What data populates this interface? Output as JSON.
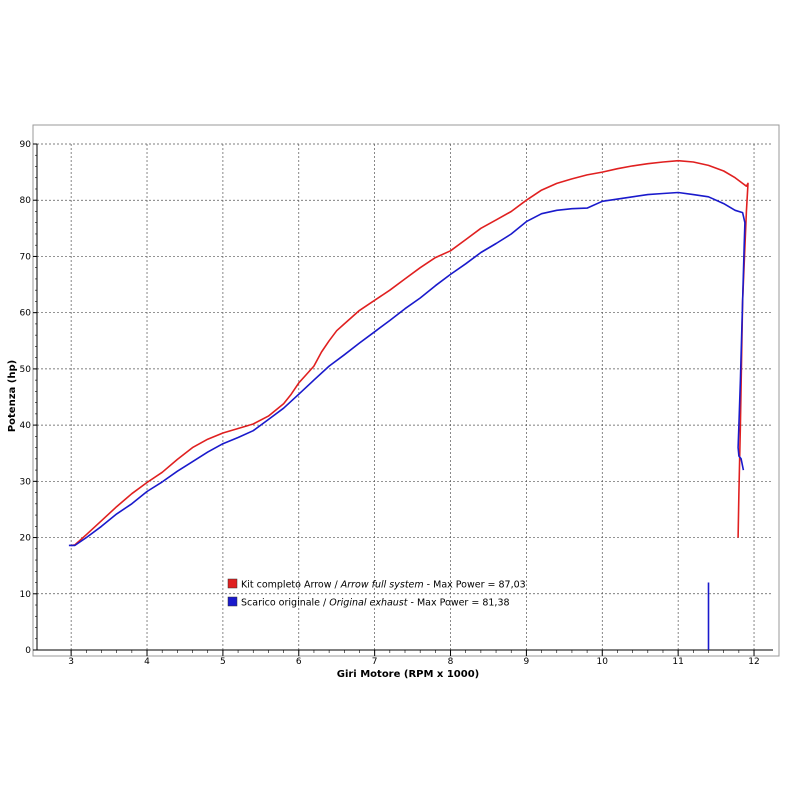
{
  "chart_data": {
    "type": "line",
    "xlabel": "Giri Motore (RPM x 1000)",
    "ylabel": "Potenza (hp)",
    "xlim": [
      2.55,
      12.25
    ],
    "ylim": [
      0,
      90
    ],
    "x_ticks": [
      3,
      4,
      5,
      6,
      7,
      8,
      9,
      10,
      11,
      12
    ],
    "y_ticks": [
      0,
      10,
      20,
      30,
      40,
      50,
      60,
      70,
      80,
      90
    ],
    "grid": true,
    "legend_position": "bottom-center",
    "series": [
      {
        "name": "Kit completo Arrow / Arrow full system - Max Power = 87,03",
        "legend_plain": "Kit completo Arrow / ",
        "legend_italic": "Arrow full system",
        "legend_suffix": " - Max Power = 87,03",
        "color": "#e02020",
        "x": [
          3.0,
          3.05,
          3.2,
          3.4,
          3.6,
          3.8,
          4.0,
          4.2,
          4.4,
          4.6,
          4.8,
          5.0,
          5.2,
          5.4,
          5.6,
          5.8,
          5.9,
          6.0,
          6.1,
          6.2,
          6.3,
          6.4,
          6.5,
          6.6,
          6.8,
          7.0,
          7.2,
          7.4,
          7.6,
          7.8,
          8.0,
          8.2,
          8.4,
          8.6,
          8.8,
          9.0,
          9.2,
          9.4,
          9.6,
          9.8,
          10.0,
          10.2,
          10.4,
          10.6,
          10.8,
          11.0,
          11.2,
          11.4,
          11.6,
          11.75,
          11.85,
          11.9,
          11.92,
          11.9,
          11.85,
          11.82,
          11.8,
          11.79
        ],
        "y": [
          18.6,
          18.7,
          20.5,
          23.0,
          25.5,
          27.8,
          29.8,
          31.6,
          33.9,
          36.0,
          37.5,
          38.6,
          39.4,
          40.2,
          41.6,
          43.8,
          45.5,
          47.5,
          49.0,
          50.5,
          53.0,
          55.0,
          56.8,
          58.0,
          60.4,
          62.2,
          64.0,
          66.0,
          68.0,
          69.8,
          71.0,
          73.0,
          75.0,
          76.5,
          78.0,
          80.0,
          81.8,
          83.0,
          83.8,
          84.5,
          85.0,
          85.6,
          86.1,
          86.5,
          86.8,
          87.03,
          86.8,
          86.2,
          85.2,
          84.0,
          83.0,
          82.5,
          83.0,
          78.0,
          62.0,
          40.0,
          28.0,
          20.0
        ]
      },
      {
        "name": "Scarico originale / Original exhaust - Max Power = 81,38",
        "legend_plain": "Scarico originale / ",
        "legend_italic": "Original exhaust",
        "legend_suffix": " - Max Power = 81,38",
        "color": "#1a1acc",
        "x": [
          2.97,
          3.05,
          3.2,
          3.4,
          3.6,
          3.8,
          4.0,
          4.2,
          4.4,
          4.6,
          4.8,
          5.0,
          5.2,
          5.4,
          5.6,
          5.8,
          6.0,
          6.2,
          6.4,
          6.6,
          6.8,
          7.0,
          7.2,
          7.4,
          7.6,
          7.8,
          8.0,
          8.2,
          8.4,
          8.6,
          8.8,
          9.0,
          9.2,
          9.4,
          9.6,
          9.8,
          10.0,
          10.2,
          10.4,
          10.6,
          10.8,
          11.0,
          11.2,
          11.4,
          11.6,
          11.75,
          11.85,
          11.88,
          11.87,
          11.85,
          11.82,
          11.8,
          11.79,
          11.8,
          11.83,
          11.86
        ],
        "y": [
          18.6,
          18.6,
          20.0,
          22.0,
          24.2,
          26.0,
          28.2,
          29.9,
          31.8,
          33.5,
          35.2,
          36.7,
          37.8,
          39.0,
          41.0,
          43.0,
          45.5,
          48.0,
          50.5,
          52.5,
          54.6,
          56.6,
          58.6,
          60.7,
          62.6,
          64.8,
          66.8,
          68.7,
          70.7,
          72.3,
          74.0,
          76.2,
          77.6,
          78.2,
          78.5,
          78.6,
          79.8,
          80.2,
          80.6,
          81.0,
          81.2,
          81.38,
          81.0,
          80.6,
          79.4,
          78.2,
          77.8,
          76.0,
          72.0,
          62.0,
          48.0,
          40.0,
          36.0,
          34.5,
          34.0,
          32.0
        ]
      }
    ],
    "artifacts": [
      {
        "color": "#1a1acc",
        "x": [
          11.4,
          11.4
        ],
        "y": [
          0,
          12
        ]
      }
    ]
  }
}
